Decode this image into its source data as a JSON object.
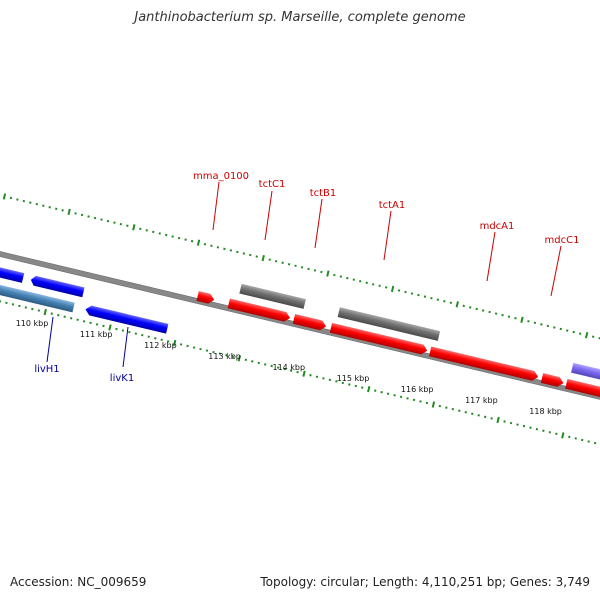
{
  "header": {
    "title": "Janthinobacterium sp. Marseille, complete genome"
  },
  "footer": {
    "accession": "Accession: NC_009659",
    "summary": "Topology: circular; Length: 4,110,251 bp; Genes: 3,749"
  },
  "ruler": {
    "tick_labels": [
      "110 kbp",
      "111 kbp",
      "112 kbp",
      "113 kbp",
      "114 kbp",
      "115 kbp",
      "116 kbp",
      "117 kbp",
      "118 kbp"
    ]
  },
  "genes_top": [
    {
      "label": "mma_0100"
    },
    {
      "label": "tctC1"
    },
    {
      "label": "tctB1"
    },
    {
      "label": "tctA1"
    },
    {
      "label": "mdcA1"
    },
    {
      "label": "mdcC1"
    }
  ],
  "genes_bottom": [
    {
      "label": "livH1"
    },
    {
      "label": "livK1"
    }
  ],
  "colors": {
    "forward_gene": "#ff0000",
    "reverse_gene": "#0000ff",
    "reverse_gene_alt": "#4682b4",
    "grey_feature": "#707070",
    "purple_feature": "#7b68ee",
    "tick": "#228b22",
    "top_label": "#cc0000",
    "bottom_label": "#000099",
    "backbone": "#808080"
  }
}
